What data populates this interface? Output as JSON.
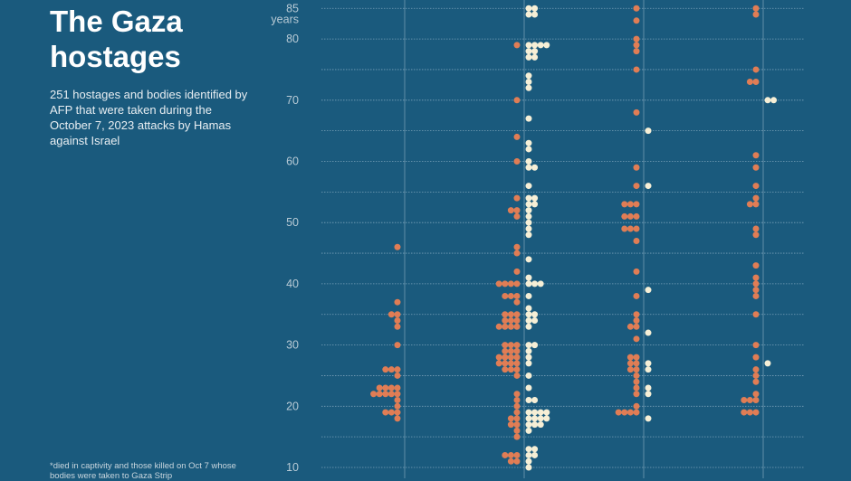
{
  "title": "The Gaza hostages",
  "subtitle": "251 hostages and bodies identified by AFP that were taken during the October 7, 2023 attacks by Hamas against Israel",
  "footnote": "*died in captivity and those killed on Oct 7 whose bodies were taken to Gaza Strip",
  "colors": {
    "background": "#1a5a7d",
    "orange_dots": "#e07d55",
    "cream_dots": "#f6efd6",
    "grid": "#8fb1c6"
  },
  "chart_data": {
    "type": "scatter",
    "ylabel": "years",
    "ylim": [
      10,
      85
    ],
    "yticks": [
      85,
      80,
      70,
      60,
      50,
      40,
      30,
      20,
      10
    ],
    "grid": true,
    "columns": [
      {
        "rows": [
          [
            46,
            1,
            0
          ],
          [
            37,
            1,
            0
          ],
          [
            35,
            2,
            0
          ],
          [
            34,
            1,
            0
          ],
          [
            33,
            1,
            0
          ],
          [
            30,
            1,
            0
          ],
          [
            26,
            3,
            0
          ],
          [
            25,
            1,
            0
          ],
          [
            23,
            4,
            0
          ],
          [
            22,
            5,
            0
          ],
          [
            21,
            1,
            0
          ],
          [
            20,
            1,
            0
          ],
          [
            19,
            3,
            0
          ],
          [
            18,
            1,
            0
          ]
        ]
      },
      {
        "rows": [
          [
            85,
            0,
            2
          ],
          [
            84,
            0,
            2
          ],
          [
            79,
            1,
            4
          ],
          [
            78,
            0,
            2
          ],
          [
            77,
            0,
            2
          ],
          [
            74,
            0,
            1
          ],
          [
            73,
            0,
            1
          ],
          [
            72,
            0,
            1
          ],
          [
            70,
            1,
            0
          ],
          [
            67,
            0,
            1
          ],
          [
            64,
            1,
            0
          ],
          [
            63,
            0,
            1
          ],
          [
            62,
            0,
            1
          ],
          [
            60,
            1,
            1
          ],
          [
            59,
            0,
            2
          ],
          [
            56,
            0,
            1
          ],
          [
            54,
            1,
            2
          ],
          [
            53,
            0,
            2
          ],
          [
            52,
            2,
            1
          ],
          [
            51,
            1,
            1
          ],
          [
            50,
            0,
            1
          ],
          [
            49,
            0,
            1
          ],
          [
            48,
            0,
            1
          ],
          [
            46,
            1,
            0
          ],
          [
            45,
            1,
            0
          ],
          [
            44,
            0,
            1
          ],
          [
            42,
            1,
            0
          ],
          [
            41,
            0,
            1
          ],
          [
            40,
            4,
            3
          ],
          [
            38,
            3,
            1
          ],
          [
            37,
            1,
            0
          ],
          [
            36,
            0,
            1
          ],
          [
            35,
            3,
            2
          ],
          [
            34,
            3,
            2
          ],
          [
            33,
            4,
            1
          ],
          [
            30,
            3,
            2
          ],
          [
            29,
            3,
            1
          ],
          [
            28,
            4,
            1
          ],
          [
            27,
            4,
            1
          ],
          [
            26,
            3,
            0
          ],
          [
            25,
            1,
            1
          ],
          [
            23,
            0,
            1
          ],
          [
            22,
            1,
            0
          ],
          [
            21,
            1,
            2
          ],
          [
            20,
            1,
            0
          ],
          [
            19,
            1,
            4
          ],
          [
            18,
            2,
            4
          ],
          [
            17,
            2,
            3
          ],
          [
            16,
            1,
            1
          ],
          [
            15,
            1,
            0
          ],
          [
            13,
            0,
            2
          ],
          [
            12,
            3,
            2
          ],
          [
            11,
            2,
            1
          ],
          [
            10,
            0,
            1
          ]
        ]
      },
      {
        "rows": [
          [
            85,
            1,
            0
          ],
          [
            83,
            1,
            0
          ],
          [
            80,
            1,
            0
          ],
          [
            79,
            1,
            0
          ],
          [
            78,
            1,
            0
          ],
          [
            75,
            1,
            0
          ],
          [
            68,
            1,
            0
          ],
          [
            65,
            0,
            1
          ],
          [
            59,
            1,
            0
          ],
          [
            56,
            1,
            1
          ],
          [
            53,
            3,
            0
          ],
          [
            51,
            3,
            0
          ],
          [
            49,
            3,
            0
          ],
          [
            47,
            1,
            0
          ],
          [
            42,
            1,
            0
          ],
          [
            39,
            0,
            1
          ],
          [
            38,
            1,
            0
          ],
          [
            35,
            1,
            0
          ],
          [
            34,
            1,
            0
          ],
          [
            33,
            2,
            0
          ],
          [
            32,
            0,
            1
          ],
          [
            31,
            1,
            0
          ],
          [
            28,
            2,
            0
          ],
          [
            27,
            2,
            1
          ],
          [
            26,
            2,
            1
          ],
          [
            25,
            1,
            0
          ],
          [
            24,
            1,
            0
          ],
          [
            23,
            1,
            1
          ],
          [
            22,
            1,
            1
          ],
          [
            20,
            1,
            0
          ],
          [
            19,
            4,
            0
          ],
          [
            18,
            0,
            1
          ]
        ]
      },
      {
        "rows": [
          [
            85,
            1,
            0
          ],
          [
            84,
            1,
            0
          ],
          [
            75,
            1,
            0
          ],
          [
            73,
            2,
            0
          ],
          [
            70,
            0,
            2
          ],
          [
            61,
            1,
            0
          ],
          [
            59,
            1,
            0
          ],
          [
            56,
            1,
            0
          ],
          [
            54,
            1,
            0
          ],
          [
            53,
            2,
            0
          ],
          [
            49,
            1,
            0
          ],
          [
            48,
            1,
            0
          ],
          [
            43,
            1,
            0
          ],
          [
            41,
            1,
            0
          ],
          [
            40,
            1,
            0
          ],
          [
            39,
            1,
            0
          ],
          [
            38,
            1,
            0
          ],
          [
            35,
            1,
            0
          ],
          [
            30,
            1,
            0
          ],
          [
            28,
            1,
            0
          ],
          [
            27,
            0,
            1
          ],
          [
            26,
            1,
            0
          ],
          [
            25,
            1,
            0
          ],
          [
            24,
            1,
            0
          ],
          [
            22,
            1,
            0
          ],
          [
            21,
            3,
            0
          ],
          [
            19,
            3,
            0
          ]
        ]
      }
    ]
  }
}
